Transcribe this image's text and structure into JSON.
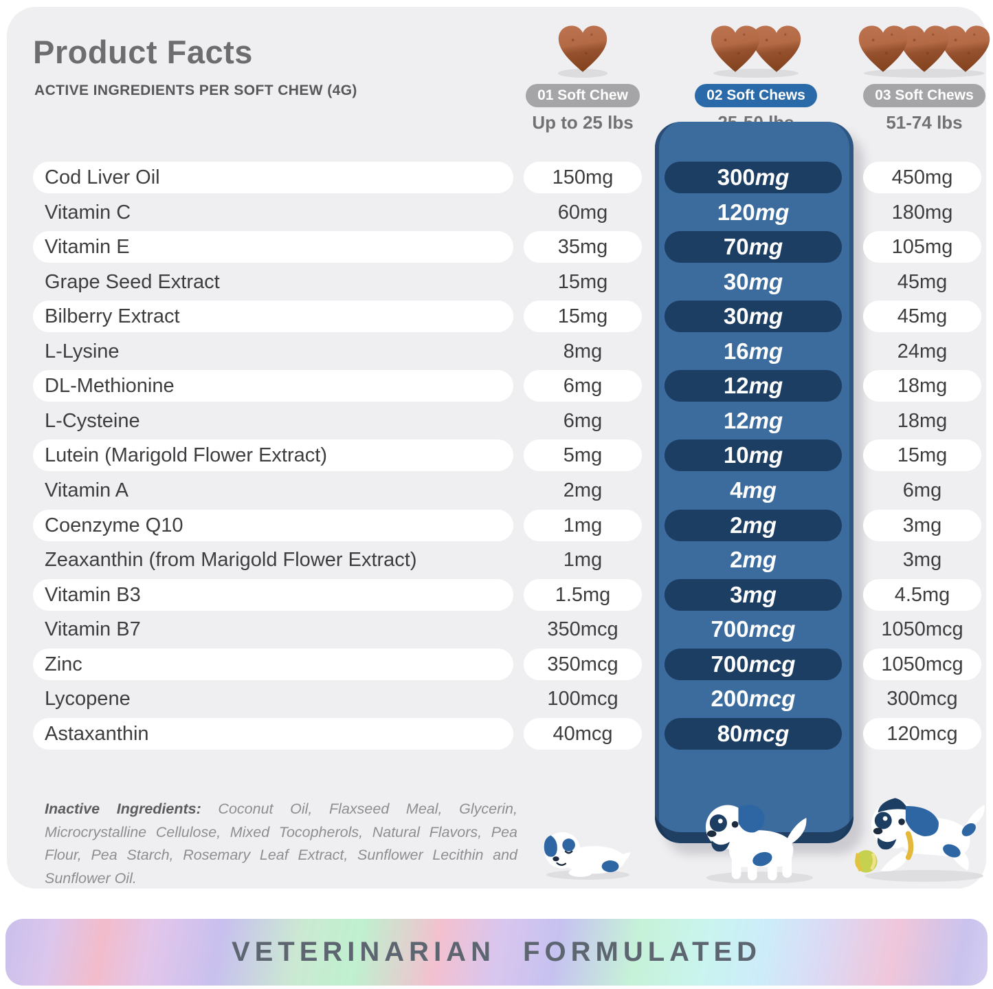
{
  "header": {
    "title": "Product Facts",
    "subtitle": "ACTIVE INGREDIENTS PER SOFT CHEW (4G)"
  },
  "dose_columns": [
    {
      "badge": "01 Soft Chew",
      "weight": "Up to 25 lbs",
      "chew_count": 1,
      "badge_color": "#a5a5a8"
    },
    {
      "badge": "02 Soft Chews",
      "weight": "25-50 lbs",
      "chew_count": 2,
      "badge_color": "#2b6aa9"
    },
    {
      "badge": "03 Soft Chews",
      "weight": "51-74 lbs",
      "chew_count": 3,
      "badge_color": "#a5a5a8"
    }
  ],
  "table": {
    "rows": [
      {
        "ingredient": "Cod Liver Oil",
        "per_1_chew": "150mg",
        "per_2_chews": "300mg",
        "per_3_chews": "450mg"
      },
      {
        "ingredient": "Vitamin C",
        "per_1_chew": "60mg",
        "per_2_chews": "120mg",
        "per_3_chews": "180mg"
      },
      {
        "ingredient": "Vitamin E",
        "per_1_chew": "35mg",
        "per_2_chews": "70mg",
        "per_3_chews": "105mg"
      },
      {
        "ingredient": "Grape Seed Extract",
        "per_1_chew": "15mg",
        "per_2_chews": "30mg",
        "per_3_chews": "45mg"
      },
      {
        "ingredient": "Bilberry Extract",
        "per_1_chew": "15mg",
        "per_2_chews": "30mg",
        "per_3_chews": "45mg"
      },
      {
        "ingredient": "L-Lysine",
        "per_1_chew": "8mg",
        "per_2_chews": "16mg",
        "per_3_chews": "24mg"
      },
      {
        "ingredient": "DL-Methionine",
        "per_1_chew": "6mg",
        "per_2_chews": "12mg",
        "per_3_chews": "18mg"
      },
      {
        "ingredient": "L-Cysteine",
        "per_1_chew": "6mg",
        "per_2_chews": "12mg",
        "per_3_chews": "18mg"
      },
      {
        "ingredient": "Lutein (Marigold Flower Extract)",
        "per_1_chew": "5mg",
        "per_2_chews": "10mg",
        "per_3_chews": "15mg"
      },
      {
        "ingredient": "Vitamin A",
        "per_1_chew": "2mg",
        "per_2_chews": "4mg",
        "per_3_chews": "6mg"
      },
      {
        "ingredient": "Coenzyme Q10",
        "per_1_chew": "1mg",
        "per_2_chews": "2mg",
        "per_3_chews": "3mg"
      },
      {
        "ingredient": "Zeaxanthin (from Marigold Flower Extract)",
        "per_1_chew": "1mg",
        "per_2_chews": "2mg",
        "per_3_chews": "3mg"
      },
      {
        "ingredient": "Vitamin B3",
        "per_1_chew": "1.5mg",
        "per_2_chews": "3mg",
        "per_3_chews": "4.5mg"
      },
      {
        "ingredient": "Vitamin B7",
        "per_1_chew": "350mcg",
        "per_2_chews": "700mcg",
        "per_3_chews": "1050mcg"
      },
      {
        "ingredient": "Zinc",
        "per_1_chew": "350mcg",
        "per_2_chews": "700mcg",
        "per_3_chews": "1050mcg"
      },
      {
        "ingredient": "Lycopene",
        "per_1_chew": "100mcg",
        "per_2_chews": "200mcg",
        "per_3_chews": "300mcg"
      },
      {
        "ingredient": "Astaxanthin",
        "per_1_chew": "40mcg",
        "per_2_chews": "80mcg",
        "per_3_chews": "120mcg"
      }
    ]
  },
  "inactive_ingredients": {
    "label": "Inactive Ingredients:",
    "text": "Coconut Oil, Flaxseed Meal, Glycerin, Microcrystalline Cellulose, Mixed Tocopherols, Natural Flavors, Pea Flour, Pea Starch, Rosemary Leaf Extract, Sunflower Lecithin and Sunflower Oil."
  },
  "banner": {
    "text": "VETERINARIAN FORMULATED"
  },
  "colors": {
    "accent_blue": "#2b6aa9",
    "panel_blue": "#3c6b9d",
    "pill_navy": "#1d3e63",
    "badge_gray": "#a5a5a8",
    "chew_brown": "#a85c36",
    "card_bg": "#efeff1"
  }
}
